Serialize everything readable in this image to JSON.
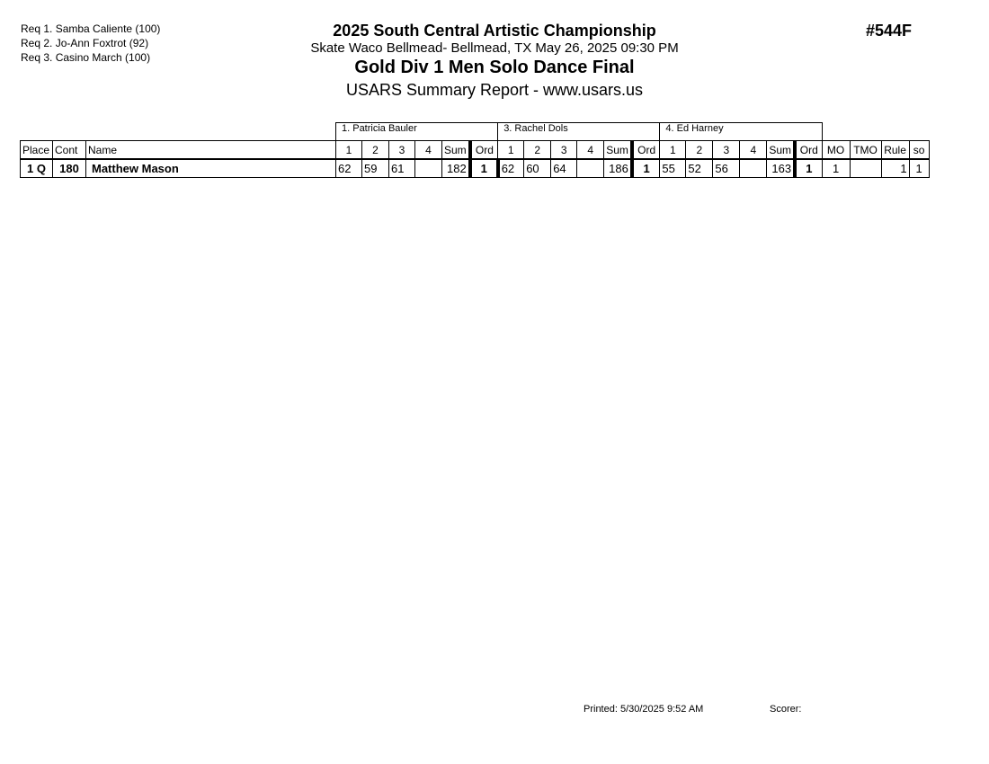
{
  "requirements": [
    "Req  1.  Samba Caliente (100)",
    "Req  2.  Jo-Ann Foxtrot (92)",
    "Req  3.  Casino March (100)"
  ],
  "header": {
    "title": "2025 South Central Artistic Championship",
    "location": "Skate Waco Bellmead- Bellmead, TX  May 26, 2025  09:30 PM",
    "event": "Gold Div 1 Men Solo Dance Final",
    "report": "USARS Summary Report - www.usars.us",
    "event_code": "#544F"
  },
  "table": {
    "judges": [
      "1.  Patricia Bauler",
      "3.  Rachel Dols",
      "4.  Ed Harney"
    ],
    "columns": {
      "place": "Place",
      "cont": "Cont",
      "name": "Name",
      "s1": "1",
      "s2": "2",
      "s3": "3",
      "s4": "4",
      "sum": "Sum",
      "ord": "Ord",
      "mo": "MO",
      "tmo": "TMO",
      "rule": "Rule",
      "so": "so"
    },
    "rows": [
      {
        "place": "1 Q",
        "cont": "180",
        "name": "Matthew Mason",
        "judges": [
          {
            "s1": "62",
            "s2": "59",
            "s3": "61",
            "s4": "",
            "sum": "182",
            "ord": "1"
          },
          {
            "s1": "62",
            "s2": "60",
            "s3": "64",
            "s4": "",
            "sum": "186",
            "ord": "1"
          },
          {
            "s1": "55",
            "s2": "52",
            "s3": "56",
            "s4": "",
            "sum": "163",
            "ord": "1"
          }
        ],
        "mo": "1",
        "tmo": "",
        "rule": "1",
        "so": "1"
      }
    ]
  },
  "footer": {
    "printed": "Printed:  5/30/2025  9:52 AM",
    "scorer": "Scorer:"
  }
}
